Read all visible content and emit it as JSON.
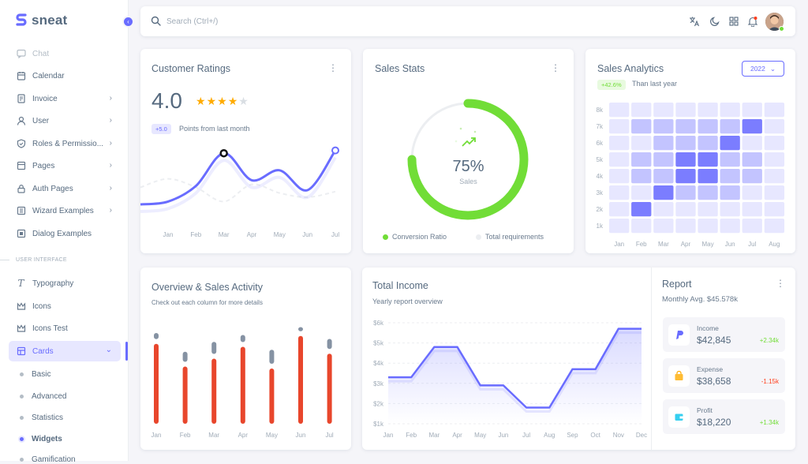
{
  "brand": {
    "name": "sneat"
  },
  "sidebar": {
    "items": [
      {
        "label": "Chat"
      },
      {
        "label": "Calendar"
      },
      {
        "label": "Invoice"
      },
      {
        "label": "User"
      },
      {
        "label": "Roles & Permissio..."
      },
      {
        "label": "Pages"
      },
      {
        "label": "Auth Pages"
      },
      {
        "label": "Wizard Examples"
      },
      {
        "label": "Dialog Examples"
      }
    ],
    "section": "USER INTERFACE",
    "ui_items": [
      {
        "label": "Typography"
      },
      {
        "label": "Icons"
      },
      {
        "label": "Icons Test"
      },
      {
        "label": "Cards"
      }
    ],
    "sub_items": [
      {
        "label": "Basic"
      },
      {
        "label": "Advanced"
      },
      {
        "label": "Statistics"
      },
      {
        "label": "Widgets"
      },
      {
        "label": "Gamification"
      }
    ]
  },
  "search": {
    "placeholder": "Search (Ctrl+/)"
  },
  "ratings": {
    "title": "Customer Ratings",
    "score": "4.0",
    "stars_filled": 4,
    "stars_total": 5,
    "badge": "+5.0",
    "badge_text": "Points from last month",
    "months": [
      "Jan",
      "Feb",
      "Mar",
      "Apr",
      "May",
      "Jun",
      "Jul"
    ]
  },
  "sales_stats": {
    "title": "Sales Stats",
    "percent": "75%",
    "sub": "Sales",
    "progress": 0.75,
    "legend": [
      "Conversion Ratio",
      "Total requirements"
    ]
  },
  "analytics": {
    "title": "Sales Analytics",
    "year": "2022",
    "badge": "+42.6%",
    "badge_text": "Than last year",
    "rows": [
      "8k",
      "7k",
      "6k",
      "5k",
      "4k",
      "3k",
      "2k",
      "1k"
    ],
    "cols": [
      "Jan",
      "Feb",
      "Mar",
      "Apr",
      "May",
      "Jun",
      "Jul",
      "Aug"
    ]
  },
  "overview": {
    "title": "Overview & Sales Activity",
    "subtitle": "Check out each column for more details",
    "months": [
      "Jan",
      "Feb",
      "Mar",
      "Apr",
      "May",
      "Jun",
      "Jul"
    ]
  },
  "income": {
    "title": "Total Income",
    "subtitle": "Yearly report overview",
    "yticks": [
      "$6k",
      "$5k",
      "$4k",
      "$3k",
      "$2k",
      "$1k"
    ],
    "months": [
      "Jan",
      "Feb",
      "Mar",
      "Apr",
      "May",
      "Jun",
      "Jul",
      "Aug",
      "Sep",
      "Oct",
      "Nov",
      "Dec"
    ]
  },
  "report": {
    "title": "Report",
    "subtitle": "Monthly Avg. $45.578k",
    "items": [
      {
        "label": "Income",
        "value": "$42,845",
        "delta": "+2.34k",
        "color": "#71dd37"
      },
      {
        "label": "Expense",
        "value": "$38,658",
        "delta": "-1.15k",
        "color": "#ff3e1d"
      },
      {
        "label": "Profit",
        "value": "$18,220",
        "delta": "+1.34k",
        "color": "#71dd37"
      }
    ]
  },
  "chart_data": [
    {
      "type": "line",
      "categories": [
        "Jan",
        "Feb",
        "Mar",
        "Apr",
        "May",
        "Jun",
        "Jul"
      ],
      "series": [
        {
          "values": [
            1.2,
            2.3,
            4.6,
            2.7,
            3.4,
            2.0,
            4.8
          ]
        },
        {
          "values": [
            2.8,
            2.2,
            1.2,
            2.4,
            1.8,
            1.5,
            1.9
          ]
        }
      ]
    },
    {
      "type": "heatmap",
      "categories": [
        "Jan",
        "Feb",
        "Mar",
        "Apr",
        "May",
        "Jun",
        "Jul",
        "Aug"
      ],
      "rows": [
        "8k",
        "7k",
        "6k",
        "5k",
        "4k",
        "3k",
        "2k",
        "1k"
      ],
      "values": [
        [
          1,
          1,
          1,
          1,
          1,
          1,
          1,
          1
        ],
        [
          1,
          2,
          2,
          2,
          2,
          2,
          4,
          1
        ],
        [
          1,
          1,
          2,
          2,
          2,
          4,
          1,
          1
        ],
        [
          1,
          2,
          2,
          4,
          4,
          2,
          2,
          1
        ],
        [
          1,
          2,
          2,
          4,
          4,
          2,
          2,
          1
        ],
        [
          1,
          1,
          4,
          2,
          2,
          2,
          1,
          1
        ],
        [
          1,
          4,
          1,
          1,
          1,
          1,
          1,
          1
        ],
        [
          1,
          1,
          1,
          1,
          1,
          1,
          1,
          1
        ]
      ]
    },
    {
      "type": "bar",
      "categories": [
        "Jan",
        "Feb",
        "Mar",
        "Apr",
        "May",
        "Jun",
        "Jul"
      ],
      "series": [
        {
          "values": [
            0.81,
            0.58,
            0.66,
            0.78,
            0.56,
            0.89,
            0.71
          ]
        },
        {
          "values": [
            0.92,
            0.73,
            0.83,
            0.9,
            0.75,
            0.98,
            0.86
          ]
        }
      ]
    },
    {
      "type": "area",
      "categories": [
        "Jan",
        "Feb",
        "Mar",
        "Apr",
        "May",
        "Jun",
        "Jul",
        "Aug",
        "Sep",
        "Oct",
        "Nov",
        "Dec"
      ],
      "values": [
        3.3,
        3.3,
        4.8,
        4.8,
        2.9,
        2.9,
        1.8,
        1.8,
        3.7,
        3.7,
        5.7,
        5.7
      ],
      "ylim": [
        1,
        6
      ]
    }
  ]
}
